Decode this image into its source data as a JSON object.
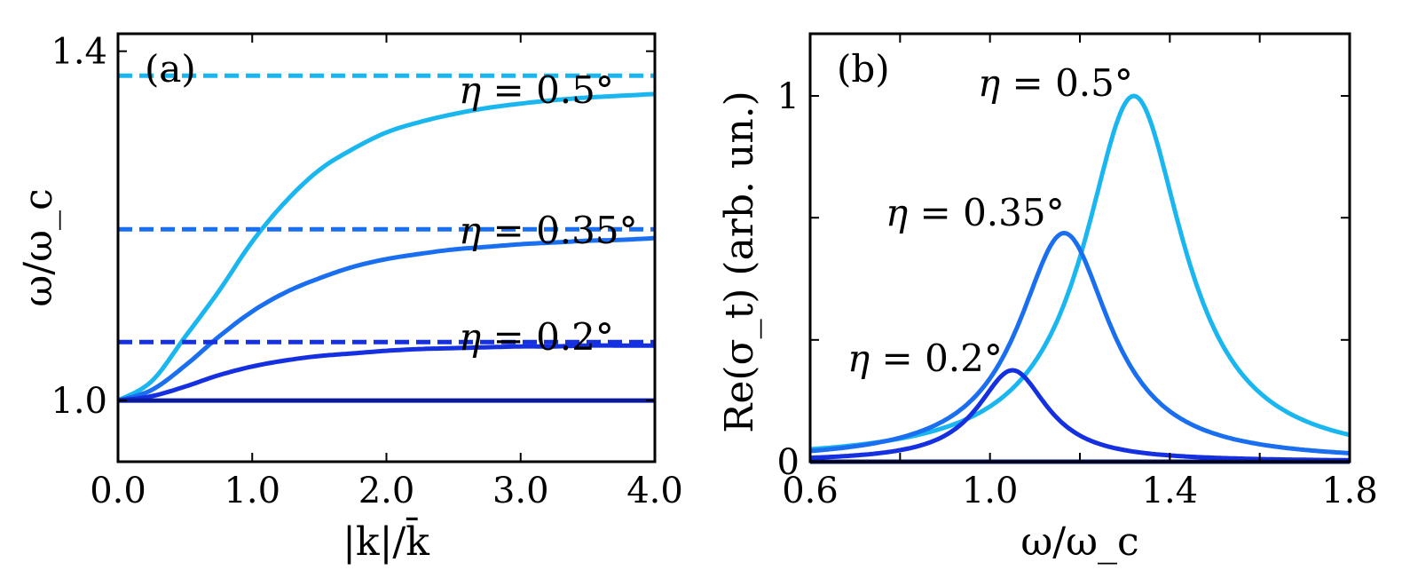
{
  "chart_data": [
    {
      "type": "line",
      "panel_label": "(a)",
      "xlabel": "|k|/k̄",
      "ylabel": "ω/ω_c",
      "xlim": [
        0,
        4
      ],
      "ylim": [
        0.93,
        1.42
      ],
      "xticks": [
        0,
        1,
        2,
        3,
        4
      ],
      "xtick_labels": [
        "0.0",
        "1.0",
        "2.0",
        "3.0",
        "4.0"
      ],
      "yticks": [
        1.0,
        1.4
      ],
      "ytick_labels": [
        "1.0",
        "1.4"
      ],
      "series": [
        {
          "name": "η = 0.5° (dashed asymptote)",
          "style": "dashed",
          "color": "#1ab6f0",
          "x": [
            0,
            4
          ],
          "y": [
            1.372,
            1.372
          ]
        },
        {
          "name": "η = 0.5°",
          "style": "solid",
          "color": "#1ab6f0",
          "x": [
            0,
            0.25,
            0.5,
            0.75,
            1.0,
            1.25,
            1.5,
            1.75,
            2.0,
            2.25,
            2.5,
            2.75,
            3.0,
            3.25,
            3.5,
            3.75,
            4.0
          ],
          "y": [
            1.0,
            1.022,
            1.073,
            1.125,
            1.182,
            1.228,
            1.264,
            1.288,
            1.307,
            1.319,
            1.328,
            1.335,
            1.34,
            1.344,
            1.347,
            1.349,
            1.351
          ]
        },
        {
          "name": "η = 0.35° (dashed asymptote)",
          "style": "dashed",
          "color": "#1a6ef0",
          "x": [
            0,
            4
          ],
          "y": [
            1.196,
            1.196
          ]
        },
        {
          "name": "η = 0.35°",
          "style": "solid",
          "color": "#1a6ef0",
          "x": [
            0,
            0.25,
            0.5,
            0.75,
            1.0,
            1.25,
            1.5,
            1.75,
            2.0,
            2.25,
            2.5,
            2.75,
            3.0,
            3.25,
            3.5,
            3.75,
            4.0
          ],
          "y": [
            1.0,
            1.012,
            1.04,
            1.073,
            1.102,
            1.124,
            1.14,
            1.153,
            1.162,
            1.168,
            1.173,
            1.176,
            1.179,
            1.181,
            1.183,
            1.184,
            1.186
          ]
        },
        {
          "name": "η = 0.2° (dashed asymptote)",
          "style": "dashed",
          "color": "#1530e0",
          "x": [
            0,
            4
          ],
          "y": [
            1.067,
            1.067
          ]
        },
        {
          "name": "η = 0.2°",
          "style": "solid",
          "color": "#1530e0",
          "x": [
            0,
            0.25,
            0.5,
            0.75,
            1.0,
            1.25,
            1.5,
            1.75,
            2.0,
            2.25,
            2.5,
            2.75,
            3.0,
            3.25,
            3.5,
            3.75,
            4.0
          ],
          "y": [
            1.0,
            1.005,
            1.016,
            1.029,
            1.039,
            1.046,
            1.051,
            1.054,
            1.057,
            1.059,
            1.06,
            1.061,
            1.062,
            1.062,
            1.063,
            1.063,
            1.063
          ]
        },
        {
          "name": "baseline",
          "style": "solid",
          "color": "#0a1a9a",
          "x": [
            0,
            4
          ],
          "y": [
            1.0,
            1.0
          ]
        }
      ],
      "annotations": [
        {
          "prefix": "η",
          "text": " = 0.5°"
        },
        {
          "prefix": "η",
          "text": " = 0.35°"
        },
        {
          "prefix": "η",
          "text": " = 0.2°"
        }
      ]
    },
    {
      "type": "line",
      "panel_label": "(b)",
      "xlabel": "ω/ω_c",
      "ylabel": "Re(σ_t) (arb. un.)",
      "xlim": [
        0.6,
        1.8
      ],
      "ylim": [
        0,
        1.17
      ],
      "xticks": [
        0.6,
        0.8,
        1.0,
        1.2,
        1.4,
        1.6,
        1.8
      ],
      "xtick_labels": [
        "0.6",
        "",
        "1.0",
        "",
        "1.4",
        "",
        "1.8"
      ],
      "yticks": [
        0,
        0.333,
        0.667,
        1
      ],
      "ytick_labels": [
        "0",
        "",
        "",
        "1"
      ],
      "series": [
        {
          "name": "η = 0.5°",
          "color": "#1ab6f0",
          "peak_x": 1.32,
          "peak_y": 1.0,
          "gamma": 0.135
        },
        {
          "name": "η = 0.35°",
          "color": "#1a6ef0",
          "peak_x": 1.165,
          "peak_y": 0.625,
          "gamma": 0.125
        },
        {
          "name": "η = 0.2°",
          "color": "#1530e0",
          "peak_x": 1.05,
          "peak_y": 0.25,
          "gamma": 0.095
        },
        {
          "name": "baseline",
          "color": "#0a1a9a",
          "flat": 0.0
        }
      ],
      "annotations": [
        {
          "prefix": "η",
          "text": " = 0.5°"
        },
        {
          "prefix": "η",
          "text": " = 0.35°"
        },
        {
          "prefix": "η",
          "text": " = 0.2°"
        }
      ]
    }
  ]
}
